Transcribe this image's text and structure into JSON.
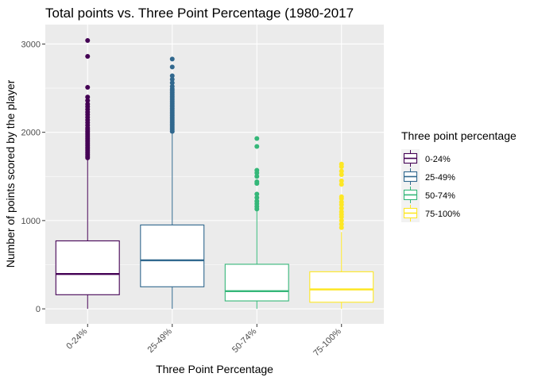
{
  "chart_data": {
    "type": "boxplot",
    "title": "Total points vs. Three Point Percentage (1980-2017",
    "xlabel": "Three Point Percentage",
    "ylabel": "Number of points scored by the player",
    "ylim": [
      -170,
      3220
    ],
    "y_ticks": [
      0,
      1000,
      2000,
      3000
    ],
    "grid": true,
    "legend": {
      "title": "Three point percentage",
      "position": "right"
    },
    "categories": [
      "0-24%",
      "25-49%",
      "50-74%",
      "75-100%"
    ],
    "series": [
      {
        "name": "0-24%",
        "color": "#440154",
        "lower_whisker": 0,
        "q1": 160,
        "median": 395,
        "q3": 770,
        "upper_whisker": 1690,
        "outliers": [
          1710,
          1730,
          1750,
          1770,
          1790,
          1810,
          1830,
          1850,
          1870,
          1890,
          1910,
          1930,
          1950,
          1970,
          1990,
          2010,
          2030,
          2050,
          2080,
          2110,
          2140,
          2170,
          2200,
          2230,
          2260,
          2290,
          2320,
          2360,
          2400,
          2510,
          2860,
          3040
        ]
      },
      {
        "name": "25-49%",
        "color": "#31688E",
        "lower_whisker": 0,
        "q1": 250,
        "median": 550,
        "q3": 950,
        "upper_whisker": 2000,
        "outliers": [
          2010,
          2030,
          2050,
          2070,
          2090,
          2110,
          2130,
          2150,
          2170,
          2190,
          2210,
          2230,
          2250,
          2270,
          2290,
          2310,
          2330,
          2350,
          2370,
          2390,
          2410,
          2430,
          2450,
          2470,
          2490,
          2520,
          2560,
          2600,
          2640,
          2740,
          2830
        ]
      },
      {
        "name": "50-74%",
        "color": "#35B779",
        "lower_whisker": 0,
        "q1": 90,
        "median": 200,
        "q3": 505,
        "upper_whisker": 1110,
        "outliers": [
          1130,
          1160,
          1190,
          1220,
          1260,
          1300,
          1420,
          1440,
          1500,
          1540,
          1570,
          1840,
          1930
        ]
      },
      {
        "name": "75-100%",
        "color": "#FDE725",
        "lower_whisker": 0,
        "q1": 75,
        "median": 220,
        "q3": 420,
        "upper_whisker": 870,
        "outliers": [
          920,
          960,
          1000,
          1040,
          1070,
          1100,
          1140,
          1180,
          1210,
          1250,
          1270,
          1410,
          1450,
          1520,
          1560,
          1610,
          1640
        ]
      }
    ]
  }
}
